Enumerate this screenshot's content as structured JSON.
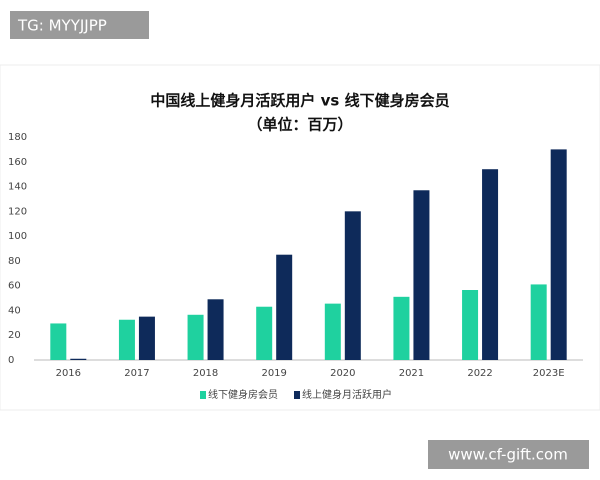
{
  "watermarks": [
    "TG: MYYJJPP",
    "www.cf-gift.com"
  ],
  "chart_data": {
    "type": "bar",
    "title": "中国线上健身月活跃用户 vs 线下健身房会员",
    "subtitle": "（单位：百万）",
    "categories": [
      "2016",
      "2017",
      "2018",
      "2019",
      "2020",
      "2021",
      "2022",
      "2023E"
    ],
    "series": [
      {
        "name": "线下健身房会员",
        "color": "#1fd19f",
        "values": [
          29.5,
          32.5,
          36.5,
          43,
          45.5,
          51,
          56.5,
          61
        ]
      },
      {
        "name": "线上健身月活跃用户",
        "color": "#0e2a5a",
        "values": [
          1,
          35,
          49,
          85,
          120,
          137,
          154,
          170
        ]
      }
    ],
    "ylim": [
      0,
      180
    ],
    "yticks": [
      0,
      20,
      40,
      60,
      80,
      100,
      120,
      140,
      160,
      180
    ],
    "grid": false,
    "legend": "bottom"
  }
}
